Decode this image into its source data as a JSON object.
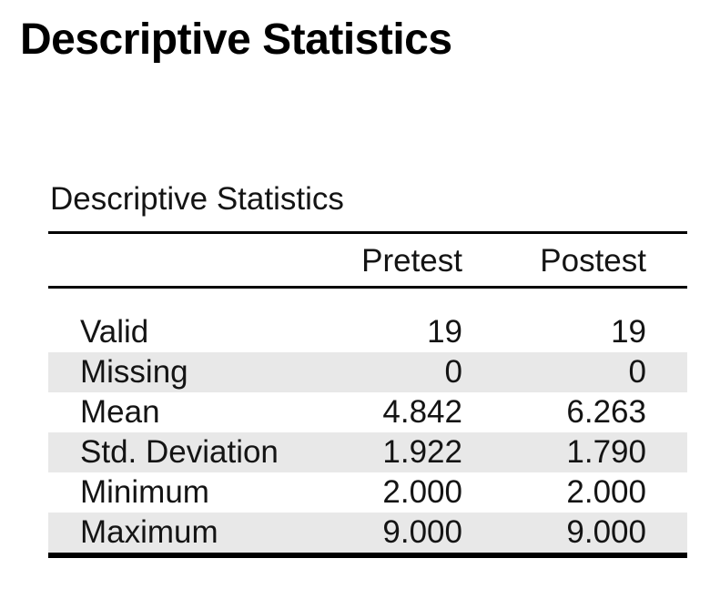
{
  "page_title": "Descriptive Statistics",
  "table": {
    "caption": "Descriptive Statistics",
    "columns": [
      "",
      "Pretest",
      "Postest"
    ],
    "rows": [
      {
        "label": "Valid",
        "values": [
          "19",
          "19"
        ]
      },
      {
        "label": "Missing",
        "values": [
          "0",
          "0"
        ]
      },
      {
        "label": "Mean",
        "values": [
          "4.842",
          "6.263"
        ]
      },
      {
        "label": "Std. Deviation",
        "values": [
          "1.922",
          "1.790"
        ]
      },
      {
        "label": "Minimum",
        "values": [
          "2.000",
          "2.000"
        ]
      },
      {
        "label": "Maximum",
        "values": [
          "9.000",
          "9.000"
        ]
      }
    ],
    "colors": {
      "zebra_row_background": "#e8e8e8",
      "rule": "#000000",
      "text": "#141414",
      "background": "#ffffff"
    }
  }
}
